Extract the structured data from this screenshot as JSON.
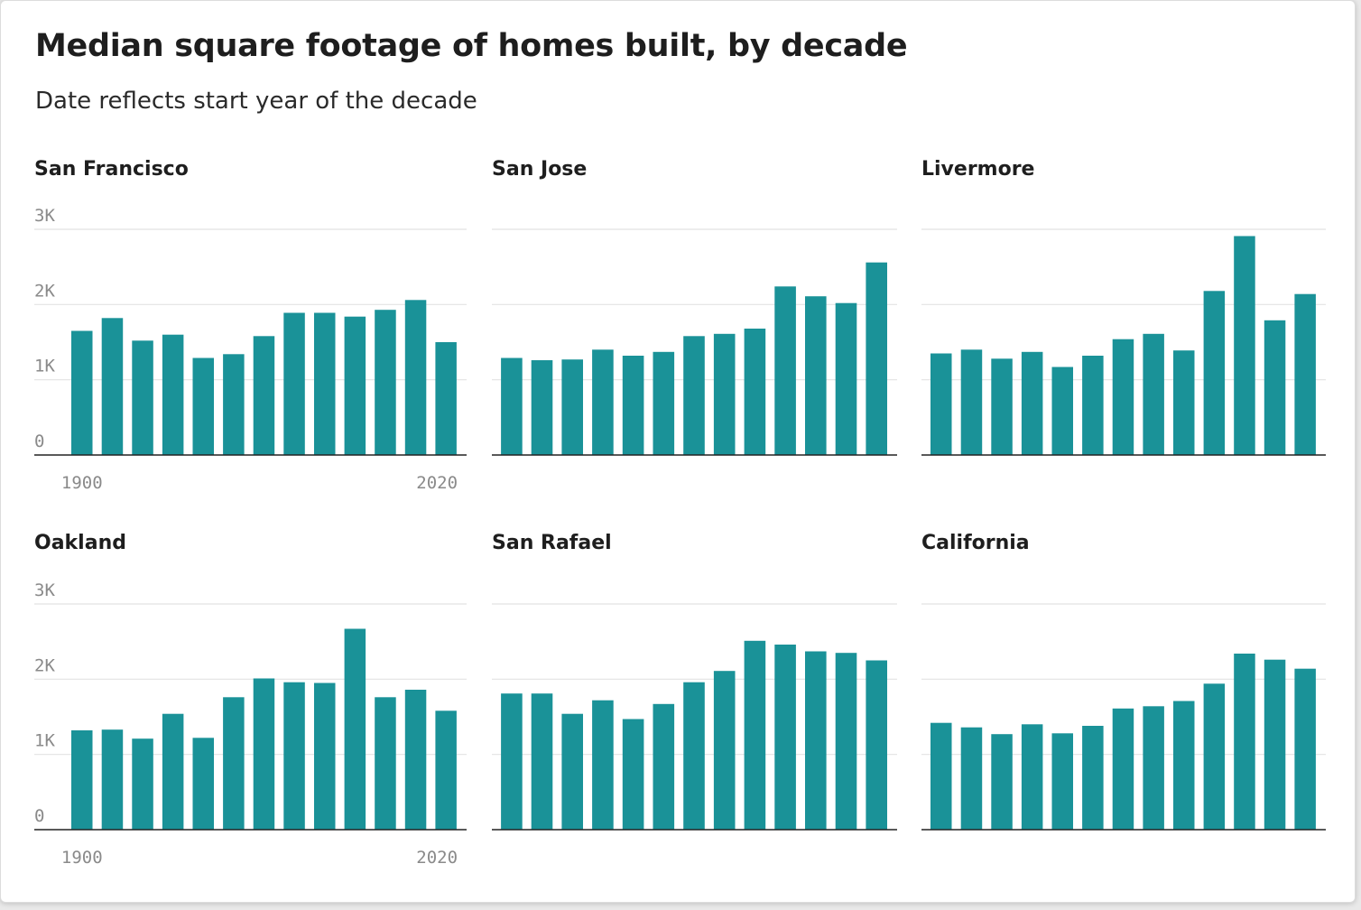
{
  "title": "Median square footage of homes built, by decade",
  "subtitle": "Date reflects start year of the decade",
  "colors": {
    "bar": "#1a9298",
    "grid": "#e2e2e2",
    "baseline": "#222222",
    "tick": "#8a8a8a"
  },
  "chart_data": [
    {
      "type": "bar",
      "title": "San Francisco",
      "yticks": [
        "0",
        "1K",
        "2K",
        "3K"
      ],
      "ylim": [
        0,
        3000
      ],
      "xticks": [
        "1900",
        "2020"
      ],
      "categories": [
        1900,
        1910,
        1920,
        1930,
        1940,
        1950,
        1960,
        1970,
        1980,
        1990,
        2000,
        2010,
        2020
      ],
      "values": [
        1650,
        1820,
        1520,
        1600,
        1290,
        1340,
        1580,
        1890,
        1890,
        1840,
        1930,
        2060,
        1500
      ]
    },
    {
      "type": "bar",
      "title": "San Jose",
      "ylim": [
        0,
        3000
      ],
      "categories": [
        1900,
        1910,
        1920,
        1930,
        1940,
        1950,
        1960,
        1970,
        1980,
        1990,
        2000,
        2010,
        2020
      ],
      "values": [
        1290,
        1260,
        1270,
        1400,
        1320,
        1370,
        1580,
        1610,
        1680,
        2240,
        2110,
        2020,
        2560
      ]
    },
    {
      "type": "bar",
      "title": "Livermore",
      "ylim": [
        0,
        3000
      ],
      "categories": [
        1900,
        1910,
        1920,
        1930,
        1940,
        1950,
        1960,
        1970,
        1980,
        1990,
        2000,
        2010,
        2020
      ],
      "values": [
        1350,
        1400,
        1280,
        1370,
        1170,
        1320,
        1540,
        1610,
        1390,
        2180,
        2910,
        1790,
        2140
      ]
    },
    {
      "type": "bar",
      "title": "Oakland",
      "yticks": [
        "0",
        "1K",
        "2K",
        "3K"
      ],
      "ylim": [
        0,
        3000
      ],
      "xticks": [
        "1900",
        "2020"
      ],
      "categories": [
        1900,
        1910,
        1920,
        1930,
        1940,
        1950,
        1960,
        1970,
        1980,
        1990,
        2000,
        2010,
        2020
      ],
      "values": [
        1320,
        1330,
        1210,
        1540,
        1220,
        1760,
        2010,
        1960,
        1950,
        2670,
        1760,
        1860,
        1580
      ]
    },
    {
      "type": "bar",
      "title": "San Rafael",
      "ylim": [
        0,
        3000
      ],
      "categories": [
        1900,
        1910,
        1920,
        1930,
        1940,
        1950,
        1960,
        1970,
        1980,
        1990,
        2000,
        2010,
        2020
      ],
      "values": [
        1810,
        1810,
        1540,
        1720,
        1470,
        1670,
        1960,
        2110,
        2510,
        2460,
        2370,
        2350,
        2250
      ]
    },
    {
      "type": "bar",
      "title": "California",
      "ylim": [
        0,
        3000
      ],
      "categories": [
        1900,
        1910,
        1920,
        1930,
        1940,
        1950,
        1960,
        1970,
        1980,
        1990,
        2000,
        2010,
        2020
      ],
      "values": [
        1420,
        1360,
        1270,
        1400,
        1280,
        1380,
        1610,
        1640,
        1710,
        1940,
        2340,
        2260,
        2140
      ]
    }
  ]
}
